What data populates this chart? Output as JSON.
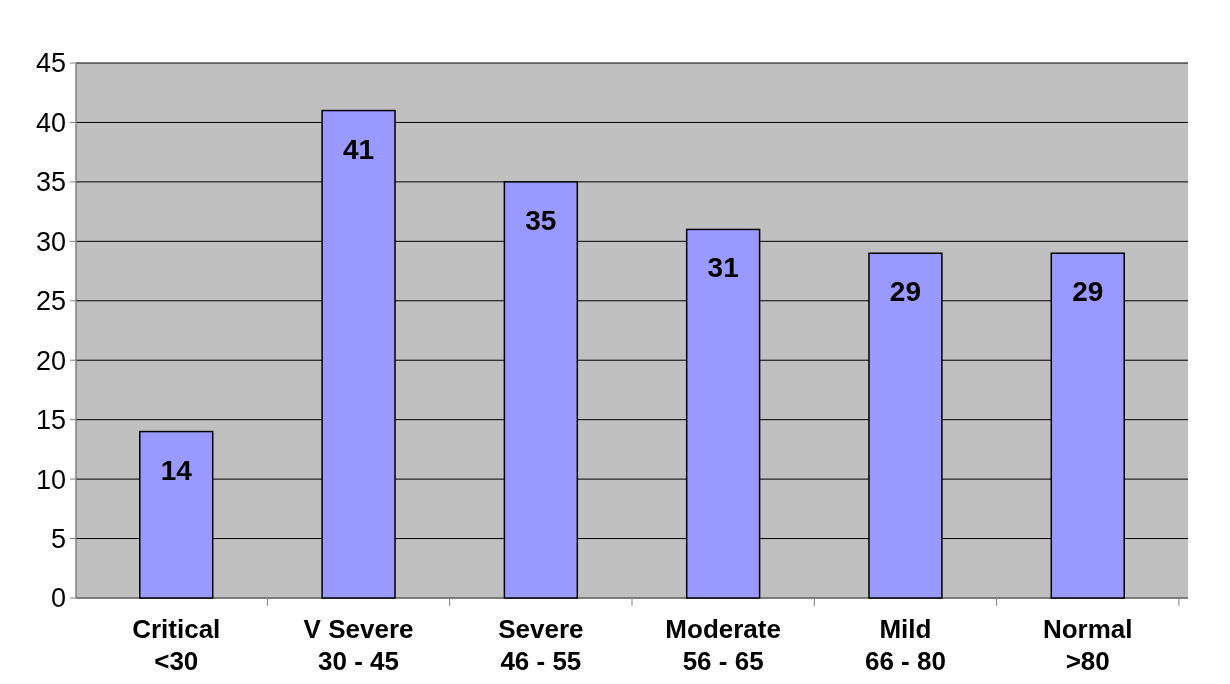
{
  "chart_data": {
    "type": "bar",
    "categories": [
      "Critical\n<30",
      "V Severe\n30 - 45",
      "Severe\n46 - 55",
      "Moderate\n56 - 65",
      "Mild\n66 - 80",
      "Normal\n>80"
    ],
    "values": [
      14,
      41,
      35,
      31,
      29,
      29
    ],
    "color": "#9999ff",
    "ylim": [
      0,
      45
    ],
    "yticks": [
      0,
      5,
      10,
      15,
      20,
      25,
      30,
      35,
      40,
      45
    ],
    "grid": "y",
    "data_labels": true
  }
}
